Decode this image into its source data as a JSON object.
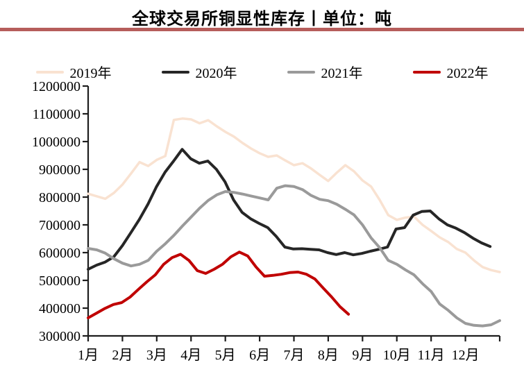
{
  "title": "全球交易所铜显性库存丨单位：吨",
  "accent_rule_color": "#b65d5b",
  "chart_data": {
    "type": "line",
    "title": "全球交易所铜显性库存",
    "unit": "吨",
    "grid": false,
    "legend_position": "top",
    "x_labels": [
      "1月",
      "2月",
      "3月",
      "4月",
      "5月",
      "6月",
      "7月",
      "8月",
      "9月",
      "10月",
      "11月",
      "12月"
    ],
    "y_ticks": [
      1200000,
      1100000,
      1000000,
      900000,
      800000,
      700000,
      600000,
      500000,
      400000,
      300000
    ],
    "ylim": [
      300000,
      1200000
    ],
    "xlim_months": [
      0,
      12
    ],
    "axis_color": "#1d1d1d",
    "series": [
      {
        "name": "2019年",
        "color": "#f9e2d1",
        "line_width": 3.5,
        "month_start": 0,
        "month_end": 12,
        "values": [
          812000,
          803000,
          794000,
          815000,
          845000,
          885000,
          926000,
          912000,
          934000,
          948000,
          1078000,
          1083000,
          1080000,
          1066000,
          1077000,
          1055000,
          1035000,
          1018000,
          995000,
          975000,
          958000,
          945000,
          950000,
          932000,
          915000,
          922000,
          903000,
          880000,
          858000,
          888000,
          915000,
          893000,
          860000,
          838000,
          790000,
          735000,
          718000,
          726000,
          730000,
          700000,
          678000,
          655000,
          638000,
          613000,
          600000,
          572000,
          548000,
          537000,
          530000
        ]
      },
      {
        "name": "2020年",
        "color": "#262626",
        "line_width": 4,
        "month_start": 0,
        "month_end": 11.72,
        "values": [
          540000,
          555000,
          566000,
          585000,
          625000,
          672000,
          720000,
          775000,
          838000,
          890000,
          930000,
          972000,
          938000,
          922000,
          930000,
          900000,
          855000,
          790000,
          745000,
          722000,
          705000,
          690000,
          658000,
          620000,
          613000,
          614000,
          612000,
          610000,
          600000,
          593000,
          600000,
          592000,
          597000,
          605000,
          612000,
          620000,
          685000,
          690000,
          735000,
          748000,
          750000,
          722000,
          700000,
          688000,
          672000,
          652000,
          635000,
          622000
        ]
      },
      {
        "name": "2021年",
        "color": "#9a9a9a",
        "line_width": 4,
        "month_start": 0,
        "month_end": 12,
        "values": [
          615000,
          610000,
          598000,
          578000,
          562000,
          552000,
          558000,
          572000,
          605000,
          632000,
          662000,
          696000,
          728000,
          760000,
          788000,
          808000,
          820000,
          817000,
          811000,
          804000,
          797000,
          790000,
          832000,
          841000,
          838000,
          827000,
          806000,
          792000,
          787000,
          774000,
          756000,
          736000,
          700000,
          653000,
          618000,
          572000,
          558000,
          538000,
          520000,
          488000,
          460000,
          415000,
          392000,
          365000,
          345000,
          338000,
          336000,
          340000,
          355000
        ]
      },
      {
        "name": "2022年",
        "color": "#c00000",
        "line_width": 4,
        "month_start": 0,
        "month_end": 7.59,
        "values": [
          365000,
          382000,
          399000,
          413000,
          420000,
          440000,
          468000,
          495000,
          520000,
          558000,
          582000,
          594000,
          572000,
          535000,
          525000,
          540000,
          558000,
          585000,
          602000,
          588000,
          548000,
          515000,
          518000,
          522000,
          528000,
          530000,
          522000,
          505000,
          472000,
          440000,
          405000,
          378000
        ]
      }
    ]
  }
}
